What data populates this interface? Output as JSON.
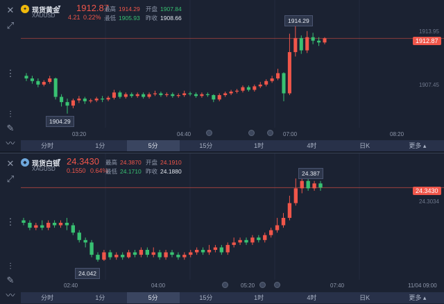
{
  "colors": {
    "up": "#f0564a",
    "down": "#38c172",
    "background": "#1b2232",
    "tab_bar": "#283149",
    "active_tab": "#3a4560"
  },
  "tabs": [
    "分时",
    "1分",
    "5分",
    "15分",
    "1时",
    "4时",
    "日K",
    "更多"
  ],
  "active_tab": "5分",
  "gold": {
    "name": "现货黄金",
    "code": "XAUUSD",
    "last": "1912.87",
    "change": "4.21",
    "change_pct": "0.22%",
    "high_label": "最高",
    "high": "1914.29",
    "open_label": "开盘",
    "open": "1907.84",
    "low_label": "最低",
    "low": "1905.93",
    "prev_label": "昨收",
    "prev": "1908.66",
    "axis_labels": [
      "1913.95",
      "1907.45"
    ],
    "price_tag": "1912.87",
    "max_callout": "1914.29",
    "min_callout": "1904.29",
    "times": [
      "03:20",
      "04:40",
      "07:00",
      "08:20"
    ],
    "icons": [
      "close-icon",
      "expand-icon",
      "candles-icon",
      "pen-icon",
      "indicator-icon"
    ]
  },
  "silver": {
    "name": "现货白银",
    "code": "XAGUSD",
    "last": "24.3430",
    "change": "0.1550",
    "change_pct": "0.64%",
    "high_label": "最高",
    "high": "24.3870",
    "open_label": "开盘",
    "open": "24.1910",
    "low_label": "最低",
    "low": "24.1710",
    "prev_label": "昨收",
    "prev": "24.1880",
    "axis_labels": [
      "24.3034"
    ],
    "price_tag": "24.3430",
    "max_callout": "24.387",
    "min_callout": "24.042",
    "times": [
      "02:40",
      "04:00",
      "05:20",
      "07:40",
      "11/04 09:00"
    ],
    "icons": [
      "close-icon",
      "expand-icon",
      "candles-icon",
      "pen-icon",
      "indicator-icon"
    ]
  },
  "chart_data": [
    {
      "type": "candlestick",
      "title": "现货黄金 XAUUSD",
      "ylim": [
        1903.0,
        1915.5
      ],
      "candles": [
        [
          1908.6,
          1908.3,
          1908.9,
          1908.0
        ],
        [
          1908.3,
          1908.0,
          1908.6,
          1907.7
        ],
        [
          1908.0,
          1907.6,
          1908.3,
          1907.3
        ],
        [
          1907.6,
          1907.9,
          1908.1,
          1907.4
        ],
        [
          1907.9,
          1908.3,
          1908.6,
          1907.7
        ],
        [
          1908.3,
          1906.2,
          1908.4,
          1905.9
        ],
        [
          1906.2,
          1905.6,
          1906.5,
          1905.1
        ],
        [
          1905.6,
          1905.2,
          1906.0,
          1904.29
        ],
        [
          1905.2,
          1905.8,
          1906.0,
          1904.9
        ],
        [
          1905.8,
          1906.0,
          1906.3,
          1905.5
        ],
        [
          1906.0,
          1905.7,
          1906.2,
          1905.4
        ],
        [
          1905.7,
          1905.8,
          1906.0,
          1905.5
        ],
        [
          1905.8,
          1906.0,
          1906.2,
          1905.6
        ],
        [
          1906.0,
          1905.9,
          1906.3,
          1905.6
        ],
        [
          1905.9,
          1906.1,
          1906.3,
          1905.7
        ],
        [
          1906.1,
          1906.7,
          1907.0,
          1905.9
        ],
        [
          1906.7,
          1906.2,
          1906.9,
          1906.0
        ],
        [
          1906.2,
          1906.5,
          1906.7,
          1906.0
        ],
        [
          1906.5,
          1906.3,
          1906.7,
          1906.1
        ],
        [
          1906.3,
          1906.5,
          1906.7,
          1906.1
        ],
        [
          1906.5,
          1906.2,
          1906.7,
          1906.0
        ],
        [
          1906.2,
          1906.5,
          1906.7,
          1906.0
        ],
        [
          1906.5,
          1906.6,
          1906.9,
          1906.3
        ],
        [
          1906.6,
          1906.4,
          1906.8,
          1906.2
        ],
        [
          1906.4,
          1906.5,
          1906.7,
          1906.2
        ],
        [
          1906.5,
          1906.3,
          1906.7,
          1906.1
        ],
        [
          1906.3,
          1906.4,
          1906.6,
          1906.1
        ],
        [
          1906.4,
          1906.6,
          1906.9,
          1906.2
        ],
        [
          1906.6,
          1906.5,
          1906.8,
          1906.3
        ],
        [
          1906.5,
          1906.3,
          1906.7,
          1906.1
        ],
        [
          1906.3,
          1906.5,
          1906.7,
          1906.1
        ],
        [
          1906.5,
          1906.4,
          1906.7,
          1906.2
        ],
        [
          1906.4,
          1905.9,
          1906.5,
          1905.6
        ],
        [
          1905.9,
          1906.4,
          1906.6,
          1905.7
        ],
        [
          1906.4,
          1906.6,
          1906.8,
          1906.2
        ],
        [
          1906.6,
          1906.8,
          1907.0,
          1906.4
        ],
        [
          1906.8,
          1906.9,
          1907.1,
          1906.6
        ],
        [
          1906.9,
          1907.3,
          1907.5,
          1906.7
        ],
        [
          1907.3,
          1907.0,
          1907.5,
          1906.8
        ],
        [
          1907.0,
          1907.4,
          1907.6,
          1906.8
        ],
        [
          1907.4,
          1907.6,
          1907.9,
          1907.2
        ],
        [
          1907.6,
          1908.0,
          1908.2,
          1907.4
        ],
        [
          1908.0,
          1908.3,
          1908.6,
          1907.8
        ],
        [
          1908.3,
          1908.9,
          1909.4,
          1908.1
        ],
        [
          1908.9,
          1906.6,
          1909.0,
          1905.7
        ],
        [
          1906.6,
          1911.3,
          1913.4,
          1906.4
        ],
        [
          1911.3,
          1912.9,
          1914.29,
          1910.8
        ],
        [
          1912.9,
          1911.5,
          1913.2,
          1911.1
        ],
        [
          1911.5,
          1913.0,
          1913.7,
          1911.2
        ],
        [
          1913.0,
          1912.6,
          1913.5,
          1912.2
        ],
        [
          1912.6,
          1912.4,
          1913.0,
          1912.0
        ],
        [
          1912.4,
          1912.87,
          1913.0,
          1912.2
        ]
      ]
    },
    {
      "type": "candlestick",
      "title": "现货白银 XAGUSD",
      "ylim": [
        23.98,
        24.42
      ],
      "candles": [
        [
          24.21,
          24.2,
          24.22,
          24.19
        ],
        [
          24.2,
          24.18,
          24.21,
          24.17
        ],
        [
          24.18,
          24.19,
          24.2,
          24.17
        ],
        [
          24.19,
          24.18,
          24.21,
          24.17
        ],
        [
          24.18,
          24.2,
          24.21,
          24.17
        ],
        [
          24.2,
          24.19,
          24.21,
          24.18
        ],
        [
          24.19,
          24.2,
          24.21,
          24.18
        ],
        [
          24.2,
          24.19,
          24.22,
          24.17
        ],
        [
          24.19,
          24.16,
          24.2,
          24.15
        ],
        [
          24.16,
          24.13,
          24.17,
          24.12
        ],
        [
          24.13,
          24.12,
          24.14,
          24.1
        ],
        [
          24.12,
          24.07,
          24.13,
          24.06
        ],
        [
          24.07,
          24.05,
          24.08,
          24.042
        ],
        [
          24.05,
          24.08,
          24.09,
          24.045
        ],
        [
          24.08,
          24.06,
          24.09,
          24.05
        ],
        [
          24.06,
          24.07,
          24.08,
          24.05
        ],
        [
          24.07,
          24.06,
          24.08,
          24.05
        ],
        [
          24.06,
          24.08,
          24.09,
          24.055
        ],
        [
          24.08,
          24.07,
          24.09,
          24.06
        ],
        [
          24.07,
          24.09,
          24.1,
          24.06
        ],
        [
          24.09,
          24.07,
          24.1,
          24.06
        ],
        [
          24.07,
          24.08,
          24.1,
          24.06
        ],
        [
          24.08,
          24.06,
          24.09,
          24.05
        ],
        [
          24.06,
          24.08,
          24.09,
          24.05
        ],
        [
          24.08,
          24.07,
          24.09,
          24.06
        ],
        [
          24.07,
          24.06,
          24.08,
          24.05
        ],
        [
          24.06,
          24.07,
          24.08,
          24.05
        ],
        [
          24.07,
          24.08,
          24.09,
          24.06
        ],
        [
          24.08,
          24.09,
          24.1,
          24.07
        ],
        [
          24.09,
          24.08,
          24.1,
          24.07
        ],
        [
          24.08,
          24.09,
          24.11,
          24.07
        ],
        [
          24.09,
          24.1,
          24.11,
          24.08
        ],
        [
          24.1,
          24.08,
          24.11,
          24.07
        ],
        [
          24.08,
          24.11,
          24.12,
          24.07
        ],
        [
          24.11,
          24.12,
          24.14,
          24.1
        ],
        [
          24.12,
          24.13,
          24.14,
          24.11
        ],
        [
          24.13,
          24.12,
          24.14,
          24.11
        ],
        [
          24.12,
          24.14,
          24.15,
          24.11
        ],
        [
          24.14,
          24.13,
          24.15,
          24.12
        ],
        [
          24.13,
          24.15,
          24.16,
          24.12
        ],
        [
          24.15,
          24.17,
          24.18,
          24.14
        ],
        [
          24.17,
          24.19,
          24.22,
          24.16
        ],
        [
          24.19,
          24.22,
          24.24,
          24.18
        ],
        [
          24.22,
          24.28,
          24.31,
          24.21
        ],
        [
          24.28,
          24.34,
          24.38,
          24.27
        ],
        [
          24.34,
          24.37,
          24.387,
          24.32
        ],
        [
          24.37,
          24.34,
          24.38,
          24.33
        ],
        [
          24.34,
          24.36,
          24.37,
          24.33
        ],
        [
          24.36,
          24.343,
          24.37,
          24.33
        ]
      ]
    }
  ]
}
